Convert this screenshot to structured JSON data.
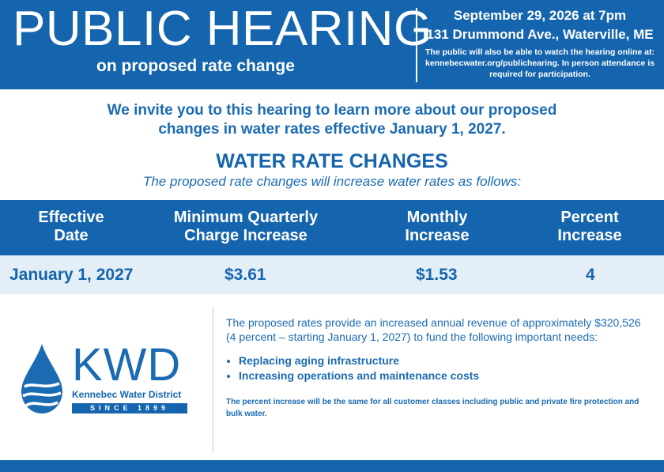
{
  "header": {
    "title": "PUBLIC HEARING",
    "subtitle": "on proposed rate change",
    "date": "September 29, 2026 at 7pm",
    "location": "131 Drummond Ave., Waterville, ME",
    "note": "The public will also be able to watch the hearing online at: kennebecwater.org/publichearing. In person attendance is required for participation."
  },
  "intro": {
    "line1": "We invite you to this hearing to learn more about our proposed",
    "line2": "changes in water rates effective January 1, 2027."
  },
  "section": {
    "title": "WATER RATE CHANGES",
    "subtitle": "The proposed rate changes will increase water rates as follows:"
  },
  "table": {
    "headers": [
      {
        "line1": "Effective",
        "line2": "Date"
      },
      {
        "line1": "Minimum Quarterly",
        "line2": "Charge Increase"
      },
      {
        "line1": "Monthly",
        "line2": "Increase"
      },
      {
        "line1": "Percent",
        "line2": "Increase"
      }
    ],
    "row": [
      "January 1, 2027",
      "$3.61",
      "$1.53",
      "4"
    ]
  },
  "logo": {
    "text": "KWD",
    "name": "Kennebec Water District",
    "since": "SINCE 1899"
  },
  "body": {
    "paragraph": "The proposed rates provide an increased annual revenue of approximately $320,526 (4 percent – starting January 1, 2027) to fund the following important needs:",
    "needs": [
      "Replacing aging infrastructure",
      "Increasing operations and maintenance costs"
    ],
    "footnote": "The percent increase will be the same for all customer classes including public and private fire protection and bulk water."
  },
  "colors": {
    "brand_blue": "#1565ae",
    "text_blue": "#1b6bb3",
    "row_background": "#e4eef7"
  }
}
